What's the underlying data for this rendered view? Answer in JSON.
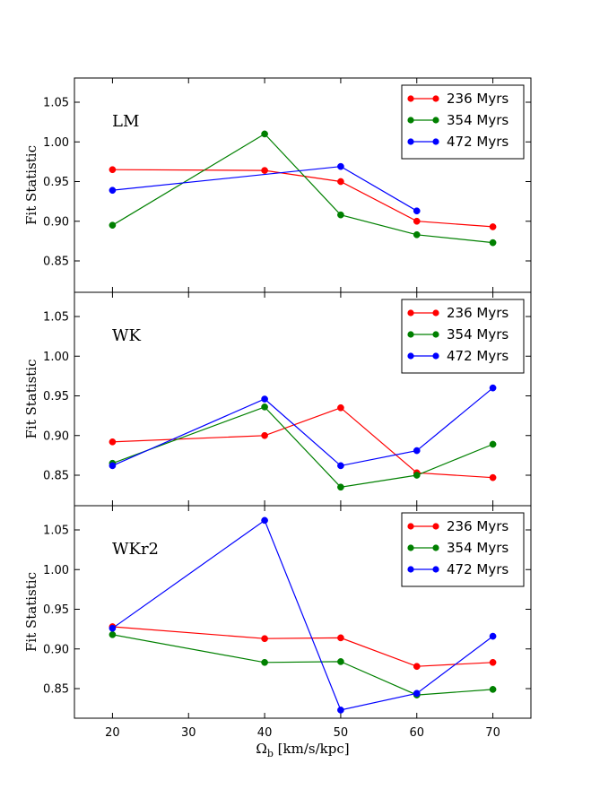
{
  "colors": {
    "236 Myrs": "#ff0000",
    "354 Myrs": "#008000",
    "472 Myrs": "#0000ff",
    "axes": "#000000",
    "background": "#ffffff"
  },
  "chart_data": {
    "type": "line",
    "xlabel_main": "Ω",
    "xlabel_sub": "b",
    "xlabel_units": " [km/s/kpc]",
    "xlim": [
      15,
      75
    ],
    "xticks": [
      20,
      30,
      40,
      50,
      60,
      70
    ],
    "ylim": [
      0.81,
      1.08
    ],
    "yticks": [
      0.85,
      0.9,
      0.95,
      1.0,
      1.05
    ],
    "ytick_labels": [
      "0.85",
      "0.90",
      "0.95",
      "1.00",
      "1.05"
    ],
    "legend_position": "top-right",
    "panels": [
      {
        "title": "LM",
        "ylabel": "Fit Statistic",
        "series": [
          {
            "name": "236 Myrs",
            "x": [
              20,
              40,
              50,
              60,
              70
            ],
            "y": [
              0.965,
              0.964,
              0.95,
              0.9,
              0.893
            ]
          },
          {
            "name": "354 Myrs",
            "x": [
              20,
              40,
              50,
              60,
              70
            ],
            "y": [
              0.895,
              1.01,
              0.908,
              0.883,
              0.873
            ]
          },
          {
            "name": "472 Myrs",
            "x": [
              20,
              50,
              60
            ],
            "y": [
              0.939,
              0.969,
              0.913
            ]
          }
        ]
      },
      {
        "title": "WK",
        "ylabel": "Fit Statistic",
        "series": [
          {
            "name": "236 Myrs",
            "x": [
              20,
              40,
              50,
              60,
              70
            ],
            "y": [
              0.892,
              0.9,
              0.935,
              0.853,
              0.847
            ]
          },
          {
            "name": "354 Myrs",
            "x": [
              20,
              40,
              50,
              60,
              70
            ],
            "y": [
              0.865,
              0.936,
              0.835,
              0.85,
              0.889
            ]
          },
          {
            "name": "472 Myrs",
            "x": [
              20,
              40,
              50,
              60,
              70
            ],
            "y": [
              0.862,
              0.946,
              0.862,
              0.881,
              0.96
            ]
          }
        ]
      },
      {
        "title": "WKr2",
        "ylabel": "Fit Statistic",
        "series": [
          {
            "name": "236 Myrs",
            "x": [
              20,
              40,
              50,
              60,
              70
            ],
            "y": [
              0.928,
              0.913,
              0.914,
              0.878,
              0.883
            ]
          },
          {
            "name": "354 Myrs",
            "x": [
              20,
              40,
              50,
              60,
              70
            ],
            "y": [
              0.918,
              0.883,
              0.884,
              0.842,
              0.849
            ]
          },
          {
            "name": "472 Myrs",
            "x": [
              20,
              40,
              50,
              60,
              70
            ],
            "y": [
              0.926,
              1.062,
              0.823,
              0.844,
              0.916
            ]
          }
        ]
      }
    ]
  }
}
